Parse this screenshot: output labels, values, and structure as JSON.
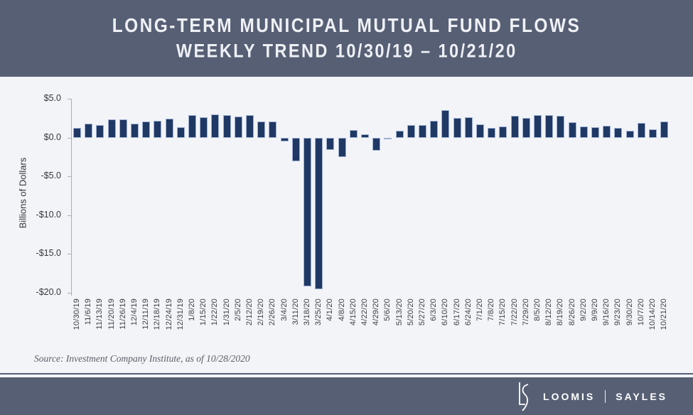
{
  "header": {
    "title_line1": "LONG-TERM MUNICIPAL MUTUAL FUND FLOWS",
    "title_line2": "WEEKLY TREND 10/30/19 – 10/21/20"
  },
  "chart_data": {
    "type": "bar",
    "title": "Long-Term Municipal Mutual Fund Flows, Weekly Trend 10/30/19 – 10/21/20",
    "ylabel": "Billions of Dollars",
    "xlabel": "",
    "ylim": [
      -20,
      5
    ],
    "grid": false,
    "legend": "none",
    "y_ticks": [
      5,
      0,
      -5,
      -10,
      -15,
      -20
    ],
    "y_tick_labels": [
      "$5.0",
      "$0.0",
      "-$5.0",
      "-$10.0",
      "-$15.0",
      "-$20.0"
    ],
    "categories": [
      "10/30/19",
      "11/6/19",
      "11/13/19",
      "11/20/19",
      "11/26/19",
      "12/4/19",
      "12/11/19",
      "12/18/19",
      "12/24/19",
      "12/31/19",
      "1/8/20",
      "1/15/20",
      "1/22/20",
      "1/31/20",
      "2/5/20",
      "2/12/20",
      "2/19/20",
      "2/26/20",
      "3/4/20",
      "3/11/20",
      "3/18/20",
      "3/25/20",
      "4/1/20",
      "4/8/20",
      "4/15/20",
      "4/22/20",
      "4/29/20",
      "5/6/20",
      "5/13/20",
      "5/20/20",
      "5/27/20",
      "6/3/20",
      "6/10/20",
      "6/17/20",
      "6/24/20",
      "7/1/20",
      "7/8/20",
      "7/15/20",
      "7/22/20",
      "7/29/20",
      "8/5/20",
      "8/12/20",
      "8/19/20",
      "8/26/20",
      "9/2/20",
      "9/9/20",
      "9/16/20",
      "9/23/20",
      "9/30/20",
      "10/7/20",
      "10/14/20",
      "10/21/20"
    ],
    "values": [
      1.2,
      1.8,
      1.6,
      2.3,
      2.3,
      1.8,
      2.1,
      2.2,
      2.4,
      1.3,
      2.9,
      2.6,
      3.0,
      2.9,
      2.7,
      2.9,
      2.1,
      2.1,
      -0.5,
      -3.1,
      -19.2,
      -19.5,
      -1.6,
      -2.5,
      1.0,
      0.4,
      -1.7,
      -0.2,
      0.9,
      1.6,
      1.6,
      2.2,
      3.5,
      2.5,
      2.6,
      1.7,
      1.2,
      1.4,
      2.8,
      2.5,
      2.9,
      2.9,
      2.8,
      2.0,
      1.4,
      1.3,
      1.5,
      1.2,
      0.9,
      1.9,
      1.1,
      2.1
    ],
    "bar_color": "#1f3864",
    "bar_border_color": "#9eb0d2"
  },
  "source": {
    "text": "Source: Investment Company Institute, as of 10/28/2020"
  },
  "footer": {
    "brand_left": "LOOMIS",
    "brand_right": "SAYLES",
    "logo_icon": "loomis-sayles-ls-monogram"
  },
  "colors": {
    "banner": "#565f74",
    "background": "#f3f4f8",
    "axis": "#a9aeb7",
    "tick_text": "#33363c"
  }
}
